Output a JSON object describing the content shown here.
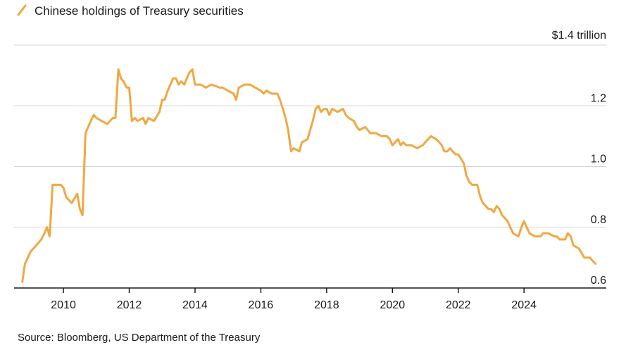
{
  "chart_data": {
    "type": "line",
    "legend": {
      "label": "Chinese holdings of Treasury securities",
      "position": "top-left"
    },
    "series": [
      {
        "name": "Chinese holdings of Treasury securities",
        "color": "#f0a842",
        "points": [
          [
            2008.75,
            0.62
          ],
          [
            2008.83,
            0.68
          ],
          [
            2008.92,
            0.7
          ],
          [
            2009.0,
            0.72
          ],
          [
            2009.17,
            0.74
          ],
          [
            2009.33,
            0.76
          ],
          [
            2009.42,
            0.78
          ],
          [
            2009.5,
            0.8
          ],
          [
            2009.58,
            0.77
          ],
          [
            2009.67,
            0.94
          ],
          [
            2009.83,
            0.94
          ],
          [
            2009.92,
            0.94
          ],
          [
            2010.0,
            0.93
          ],
          [
            2010.08,
            0.9
          ],
          [
            2010.25,
            0.88
          ],
          [
            2010.42,
            0.91
          ],
          [
            2010.5,
            0.86
          ],
          [
            2010.58,
            0.84
          ],
          [
            2010.67,
            1.11
          ],
          [
            2010.83,
            1.15
          ],
          [
            2010.92,
            1.17
          ],
          [
            2011.0,
            1.16
          ],
          [
            2011.17,
            1.15
          ],
          [
            2011.33,
            1.14
          ],
          [
            2011.5,
            1.16
          ],
          [
            2011.58,
            1.16
          ],
          [
            2011.67,
            1.32
          ],
          [
            2011.75,
            1.29
          ],
          [
            2011.83,
            1.28
          ],
          [
            2011.92,
            1.26
          ],
          [
            2012.0,
            1.26
          ],
          [
            2012.08,
            1.15
          ],
          [
            2012.17,
            1.16
          ],
          [
            2012.25,
            1.15
          ],
          [
            2012.42,
            1.16
          ],
          [
            2012.5,
            1.14
          ],
          [
            2012.58,
            1.16
          ],
          [
            2012.75,
            1.15
          ],
          [
            2012.92,
            1.18
          ],
          [
            2013.0,
            1.22
          ],
          [
            2013.08,
            1.22
          ],
          [
            2013.17,
            1.25
          ],
          [
            2013.33,
            1.29
          ],
          [
            2013.42,
            1.29
          ],
          [
            2013.5,
            1.27
          ],
          [
            2013.58,
            1.28
          ],
          [
            2013.67,
            1.27
          ],
          [
            2013.83,
            1.31
          ],
          [
            2013.92,
            1.32
          ],
          [
            2014.0,
            1.27
          ],
          [
            2014.17,
            1.27
          ],
          [
            2014.33,
            1.26
          ],
          [
            2014.5,
            1.27
          ],
          [
            2014.75,
            1.26
          ],
          [
            2014.83,
            1.26
          ],
          [
            2015.0,
            1.25
          ],
          [
            2015.17,
            1.24
          ],
          [
            2015.25,
            1.22
          ],
          [
            2015.33,
            1.26
          ],
          [
            2015.5,
            1.27
          ],
          [
            2015.67,
            1.27
          ],
          [
            2015.83,
            1.26
          ],
          [
            2016.0,
            1.25
          ],
          [
            2016.08,
            1.24
          ],
          [
            2016.17,
            1.25
          ],
          [
            2016.33,
            1.24
          ],
          [
            2016.5,
            1.24
          ],
          [
            2016.58,
            1.22
          ],
          [
            2016.67,
            1.19
          ],
          [
            2016.75,
            1.16
          ],
          [
            2016.83,
            1.12
          ],
          [
            2016.92,
            1.05
          ],
          [
            2017.0,
            1.06
          ],
          [
            2017.17,
            1.05
          ],
          [
            2017.25,
            1.08
          ],
          [
            2017.42,
            1.09
          ],
          [
            2017.5,
            1.12
          ],
          [
            2017.58,
            1.15
          ],
          [
            2017.67,
            1.19
          ],
          [
            2017.75,
            1.2
          ],
          [
            2017.83,
            1.18
          ],
          [
            2017.92,
            1.19
          ],
          [
            2018.0,
            1.19
          ],
          [
            2018.08,
            1.17
          ],
          [
            2018.17,
            1.19
          ],
          [
            2018.33,
            1.18
          ],
          [
            2018.5,
            1.19
          ],
          [
            2018.58,
            1.17
          ],
          [
            2018.67,
            1.16
          ],
          [
            2018.83,
            1.15
          ],
          [
            2018.92,
            1.13
          ],
          [
            2019.0,
            1.12
          ],
          [
            2019.17,
            1.13
          ],
          [
            2019.33,
            1.11
          ],
          [
            2019.5,
            1.11
          ],
          [
            2019.67,
            1.1
          ],
          [
            2019.83,
            1.1
          ],
          [
            2019.92,
            1.09
          ],
          [
            2020.0,
            1.07
          ],
          [
            2020.17,
            1.09
          ],
          [
            2020.25,
            1.07
          ],
          [
            2020.33,
            1.08
          ],
          [
            2020.42,
            1.07
          ],
          [
            2020.58,
            1.07
          ],
          [
            2020.75,
            1.06
          ],
          [
            2020.92,
            1.07
          ],
          [
            2021.0,
            1.08
          ],
          [
            2021.17,
            1.1
          ],
          [
            2021.33,
            1.09
          ],
          [
            2021.42,
            1.08
          ],
          [
            2021.5,
            1.07
          ],
          [
            2021.58,
            1.05
          ],
          [
            2021.67,
            1.05
          ],
          [
            2021.75,
            1.06
          ],
          [
            2021.83,
            1.05
          ],
          [
            2021.92,
            1.04
          ],
          [
            2022.0,
            1.04
          ],
          [
            2022.17,
            1.01
          ],
          [
            2022.25,
            0.97
          ],
          [
            2022.33,
            0.95
          ],
          [
            2022.42,
            0.94
          ],
          [
            2022.58,
            0.94
          ],
          [
            2022.67,
            0.9
          ],
          [
            2022.75,
            0.88
          ],
          [
            2022.92,
            0.86
          ],
          [
            2023.0,
            0.86
          ],
          [
            2023.08,
            0.85
          ],
          [
            2023.17,
            0.87
          ],
          [
            2023.25,
            0.86
          ],
          [
            2023.33,
            0.84
          ],
          [
            2023.5,
            0.82
          ],
          [
            2023.58,
            0.8
          ],
          [
            2023.67,
            0.78
          ],
          [
            2023.83,
            0.77
          ],
          [
            2023.92,
            0.8
          ],
          [
            2024.0,
            0.82
          ],
          [
            2024.08,
            0.8
          ],
          [
            2024.17,
            0.78
          ],
          [
            2024.33,
            0.77
          ],
          [
            2024.5,
            0.77
          ],
          [
            2024.58,
            0.78
          ],
          [
            2024.75,
            0.78
          ],
          [
            2024.92,
            0.77
          ],
          [
            2025.0,
            0.77
          ],
          [
            2025.08,
            0.76
          ],
          [
            2025.25,
            0.76
          ],
          [
            2025.33,
            0.78
          ],
          [
            2025.42,
            0.77
          ],
          [
            2025.5,
            0.74
          ],
          [
            2025.67,
            0.73
          ],
          [
            2025.83,
            0.7
          ],
          [
            2026.0,
            0.7
          ],
          [
            2026.08,
            0.69
          ],
          [
            2026.17,
            0.68
          ]
        ]
      }
    ],
    "x_ticks": [
      2010,
      2012,
      2014,
      2016,
      2018,
      2020,
      2022,
      2024
    ],
    "x_tick_labels": [
      "2010",
      "2012",
      "2014",
      "2016",
      "2018",
      "2020",
      "2022",
      "2024"
    ],
    "xlim": [
      2008.5,
      2026.5
    ],
    "y_ticks": [
      0.6,
      0.8,
      1.0,
      1.2,
      1.4
    ],
    "y_tick_labels": [
      "0.6",
      "0.8",
      "1.0",
      "1.2",
      "$1.4 trillion"
    ],
    "ylim": [
      0.6,
      1.4
    ],
    "grid": "horizontal",
    "source": "Source: Bloomberg, US Department of the Treasury"
  }
}
